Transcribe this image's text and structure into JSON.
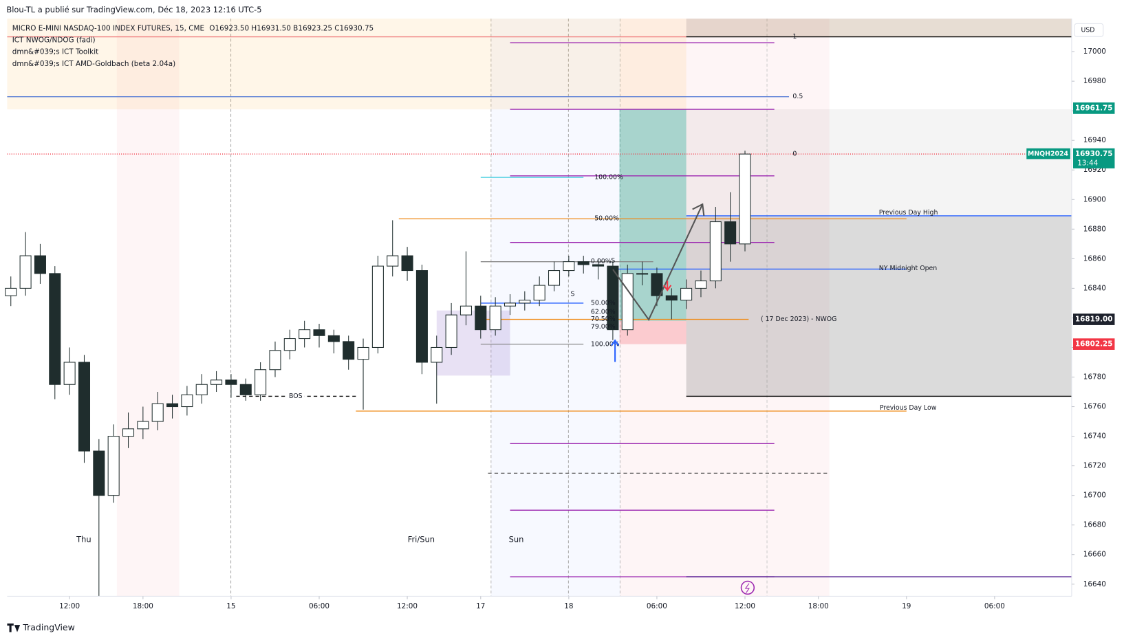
{
  "header": {
    "publisher": "Blou-TL a publié sur TradingView.com, Déc 18, 2023 12:16 UTC-5",
    "brand": "TradingView"
  },
  "chart_data": {
    "type": "candlestick",
    "title": "MICRO E-MINI NASDAQ-100 INDEX FUTURES, 15, CME",
    "ohlc_label": "O16923.50  H16931.50  B16923.25  C16930.75",
    "indicators": [
      "ICT NWOG/NDOG (fadi)",
      "dmn&#039;s ICT Toolkit",
      "dmn&#039;s ICT AMD-Goldbach (beta 2.04a)"
    ],
    "currency": "USD",
    "symbol_tag": "MNQH2024",
    "up_color": "#ffffff",
    "down_color": "#1f2d2d",
    "wick_color": "#1f2d2d",
    "x": [
      1,
      5,
      9,
      13,
      17,
      21,
      25,
      29,
      33,
      37,
      41,
      45,
      49,
      53,
      57,
      61,
      65,
      69,
      73,
      77,
      81,
      85,
      89,
      93,
      97,
      101,
      105,
      109,
      113,
      117,
      121,
      125,
      129,
      133,
      137,
      141,
      145,
      149,
      153,
      157,
      161,
      165,
      169,
      173,
      177,
      181,
      185,
      189,
      193,
      197,
      201
    ],
    "open": [
      16835,
      16840,
      16862,
      16850,
      16775,
      16790,
      16730,
      16700,
      16740,
      16745,
      16750,
      16762,
      16760,
      16768,
      16775,
      16778,
      16775,
      16768,
      16785,
      16798,
      16806,
      16812,
      16808,
      16804,
      16792,
      16800,
      16855,
      16862,
      16852,
      16790,
      16800,
      16822,
      16828,
      16812,
      16828,
      16830,
      16832,
      16842,
      16852,
      16858,
      16856,
      16855,
      16812,
      16850,
      16850,
      16835,
      16832,
      16840,
      16845,
      16885,
      16870
    ],
    "high": [
      16848,
      16878,
      16870,
      16855,
      16800,
      16795,
      16738,
      16748,
      16756,
      16760,
      16770,
      16768,
      16774,
      16782,
      16784,
      16782,
      16779,
      16790,
      16804,
      16812,
      16818,
      16816,
      16812,
      16808,
      16806,
      16862,
      16886,
      16868,
      16856,
      16808,
      16830,
      16865,
      16835,
      16834,
      16836,
      16838,
      16848,
      16858,
      16862,
      16862,
      16860,
      16858,
      16856,
      16858,
      16854,
      16840,
      16846,
      16852,
      16895,
      16905,
      16933
    ],
    "low": [
      16828,
      16835,
      16843,
      16765,
      16768,
      16722,
      16632,
      16695,
      16732,
      16738,
      16744,
      16752,
      16754,
      16762,
      16770,
      16766,
      16764,
      16764,
      16780,
      16792,
      16800,
      16800,
      16796,
      16785,
      16758,
      16796,
      16848,
      16845,
      16782,
      16762,
      16795,
      16815,
      16806,
      16808,
      16822,
      16825,
      16828,
      16838,
      16848,
      16850,
      16846,
      16805,
      16808,
      16842,
      16828,
      16819,
      16826,
      16834,
      16840,
      16858,
      16865
    ],
    "close": [
      16840,
      16862,
      16850,
      16775,
      16790,
      16730,
      16700,
      16740,
      16745,
      16750,
      16762,
      16760,
      16768,
      16775,
      16778,
      16775,
      16768,
      16785,
      16798,
      16806,
      16812,
      16808,
      16804,
      16792,
      16800,
      16855,
      16862,
      16852,
      16790,
      16800,
      16822,
      16828,
      16812,
      16828,
      16830,
      16832,
      16842,
      16852,
      16858,
      16856,
      16855,
      16812,
      16850,
      16850,
      16835,
      16832,
      16840,
      16845,
      16885,
      16870,
      16930.75
    ],
    "xlim": [
      0,
      290
    ],
    "xticks": [
      {
        "value": 17,
        "label": "12:00"
      },
      {
        "value": 37,
        "label": "18:00"
      },
      {
        "value": 61,
        "label": "15"
      },
      {
        "value": 85,
        "label": "06:00"
      },
      {
        "value": 109,
        "label": "12:00"
      },
      {
        "value": 129,
        "label": "17"
      },
      {
        "value": 153,
        "label": "18"
      },
      {
        "value": 177,
        "label": "06:00"
      },
      {
        "value": 201,
        "label": "12:00"
      },
      {
        "value": 221,
        "label": "18:00"
      },
      {
        "value": 245,
        "label": "19"
      },
      {
        "value": 269,
        "label": "06:00"
      }
    ],
    "ylim": [
      16631.8,
      17022.3
    ],
    "yticks": [
      16640,
      16660,
      16680,
      16700,
      16720,
      16740,
      16760,
      16780,
      16800,
      16820,
      16840,
      16860,
      16880,
      16900,
      16920,
      16940,
      16960,
      16980,
      17000
    ],
    "price_labels": [
      {
        "value": 16961.75,
        "label": "16961.75",
        "color": "#089981"
      },
      {
        "value": 16930.75,
        "label": "16930.75",
        "sub": "13:44",
        "color": "#089981"
      },
      {
        "value": 16819,
        "label": "16819.00",
        "color": "#1e222d"
      },
      {
        "value": 16802.25,
        "label": "16802.25",
        "color": "#f23645"
      }
    ],
    "zones": [
      {
        "x": [
          0,
          185
        ],
        "range": [
          16961,
          17022.3
        ],
        "color": "rgba(255,183,77,0.13)"
      },
      {
        "x": [
          185,
          290
        ],
        "range": [
          17010,
          17022.3
        ],
        "color": "rgba(160,120,80,0.25)"
      },
      {
        "x": [
          185,
          290
        ],
        "range": [
          16889,
          16961
        ],
        "color": "rgba(120,120,120,0.08)"
      },
      {
        "x": [
          185,
          290
        ],
        "range": [
          16767,
          16889
        ],
        "color": "rgba(110,110,110,0.25)"
      },
      {
        "x": [
          166.8,
          185
        ],
        "range": [
          16818,
          16961
        ],
        "color": "rgba(8,153,129,0.35)"
      },
      {
        "x": [
          166.8,
          185
        ],
        "range": [
          16802.25,
          16818
        ],
        "color": "rgba(242,54,69,0.22)"
      },
      {
        "x": [
          117,
          137
        ],
        "range": [
          16781,
          16825
        ],
        "color": "rgba(126,87,194,0.18)"
      }
    ],
    "levels": [
      {
        "value": 17010,
        "x": [
          0,
          185
        ],
        "color": "#f08080"
      },
      {
        "value": 17010,
        "x": [
          185,
          290
        ],
        "color": "#000000"
      },
      {
        "value": 17006,
        "x": [
          137,
          209
        ],
        "color": "#9c27b0"
      },
      {
        "value": 16969.5,
        "x": [
          0,
          213
        ],
        "color": "#5b7fd6"
      },
      {
        "value": 16961,
        "x": [
          137,
          209
        ],
        "color": "#9c27b0"
      },
      {
        "value": 16930.75,
        "x": [
          0,
          290
        ],
        "color": "#f23645",
        "style": "dotted"
      },
      {
        "value": 16915,
        "x": [
          129,
          157
        ],
        "color": "#26c6da"
      },
      {
        "value": 16916,
        "x": [
          137,
          209
        ],
        "color": "#9c27b0"
      },
      {
        "value": 16889,
        "x": [
          185,
          290
        ],
        "color": "#2962ff"
      },
      {
        "value": 16887,
        "x": [
          106.7,
          245
        ],
        "color": "#ef8a17"
      },
      {
        "value": 16871,
        "x": [
          137,
          209
        ],
        "color": "#9c27b0"
      },
      {
        "value": 16858,
        "x": [
          129,
          176
        ],
        "color": "#888888"
      },
      {
        "value": 16853,
        "x": [
          165,
          245
        ],
        "color": "#2962ff"
      },
      {
        "value": 16830,
        "x": [
          129,
          157
        ],
        "color": "#2962ff"
      },
      {
        "value": 16819,
        "x": [
          129,
          202
        ],
        "color": "#ef8a17"
      },
      {
        "value": 16802.25,
        "x": [
          129,
          157
        ],
        "color": "#888888"
      },
      {
        "value": 16767,
        "x": [
          62.4,
          95
        ],
        "color": "#000000",
        "style": "dashed"
      },
      {
        "value": 16767,
        "x": [
          185,
          290
        ],
        "color": "#000000"
      },
      {
        "value": 16757,
        "x": [
          95,
          245
        ],
        "color": "#ef8a17"
      },
      {
        "value": 16735,
        "x": [
          137,
          209
        ],
        "color": "#9c27b0"
      },
      {
        "value": 16715,
        "x": [
          131,
          223.5
        ],
        "color": "#555555",
        "style": "dashed"
      },
      {
        "value": 16690,
        "x": [
          137,
          209
        ],
        "color": "#9c27b0"
      },
      {
        "value": 16645,
        "x": [
          137,
          209
        ],
        "color": "#9c27b0"
      },
      {
        "value": 16645,
        "x": [
          185,
          290
        ],
        "color": "#4a148c"
      }
    ],
    "texts": [
      {
        "label": "1",
        "x": 214,
        "value": 17010,
        "color": "#555555"
      },
      {
        "label": "0.5",
        "x": 214,
        "value": 16969.5,
        "color": "#555555"
      },
      {
        "label": "0",
        "x": 214,
        "value": 16930.75,
        "color": "#555555"
      },
      {
        "label": "100.00%",
        "x": 160,
        "value": 16915,
        "color": "#26c6da"
      },
      {
        "label": "50.00%",
        "x": 160,
        "value": 16887,
        "color": "#26c6da"
      },
      {
        "label": "0.00%",
        "x": 159,
        "value": 16858,
        "color": "#ef8a17"
      },
      {
        "label": "S",
        "x": 164.5,
        "value": 16858.5,
        "color": "#131722"
      },
      {
        "label": "S",
        "x": 153.5,
        "value": 16836,
        "color": "#131722"
      },
      {
        "label": "50.00%",
        "x": 159,
        "value": 16830,
        "color": "#2962ff"
      },
      {
        "label": "62.00%",
        "x": 159,
        "value": 16824,
        "color": "#2962ff"
      },
      {
        "label": "70.50%",
        "x": 159,
        "value": 16819,
        "color": "#2962ff"
      },
      {
        "label": "79.00%",
        "x": 159,
        "value": 16814,
        "color": "#2962ff"
      },
      {
        "label": "100.00%",
        "x": 159,
        "value": 16802,
        "color": "#2962ff"
      },
      {
        "label": "( 17 Dec 2023) - NWOG",
        "x": 205.3,
        "value": 16819,
        "color": "#ef8a17"
      },
      {
        "label": "Previous Day High",
        "x": 237.5,
        "value": 16891,
        "color": "#2a2e39"
      },
      {
        "label": "NY Midnight Open",
        "x": 237.5,
        "value": 16853.5,
        "color": "#2a2e39"
      },
      {
        "label": "Previous Day Low",
        "x": 237.7,
        "value": 16759,
        "color": "#2a2e39"
      },
      {
        "label": "BOS",
        "x": 78.6,
        "value": 16767,
        "color": "#131722"
      }
    ],
    "session_labels": [
      {
        "x": 20.9,
        "label": "Thu"
      },
      {
        "x": 112.8,
        "label": "Fri/Sun"
      },
      {
        "x": 138.7,
        "label": "Sun"
      }
    ]
  }
}
